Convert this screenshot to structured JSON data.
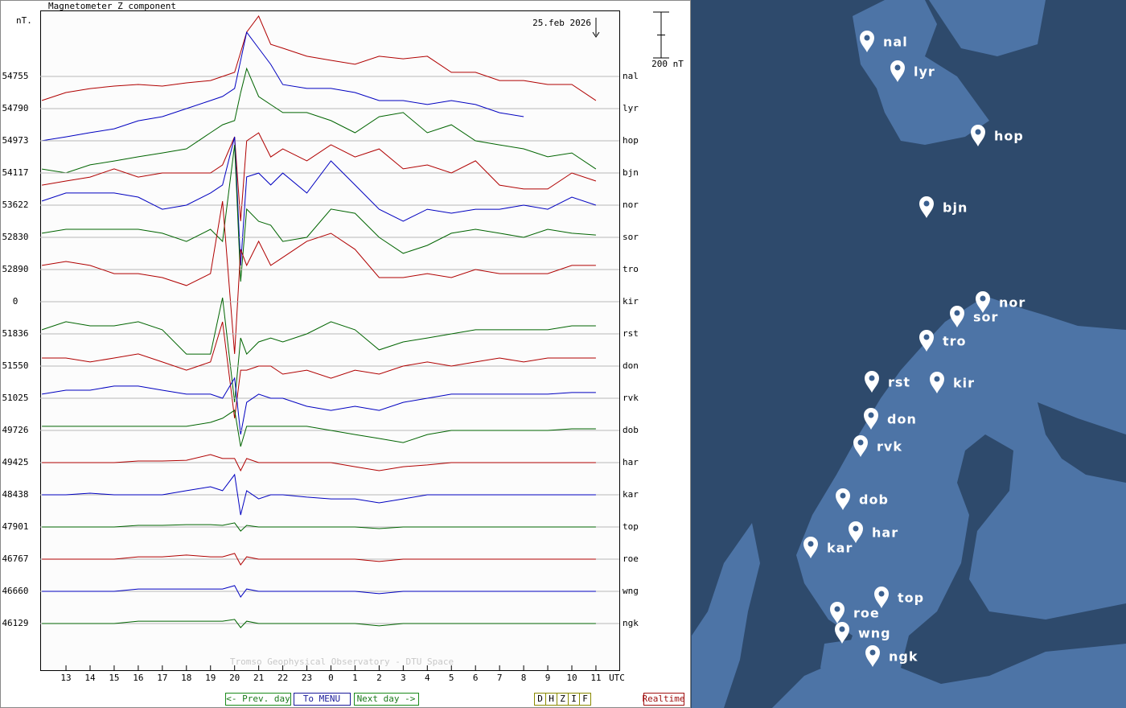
{
  "chart_data": {
    "type": "line",
    "title": "Magnetometer Z component",
    "y_unit": "nT.",
    "x_unit": "UTC",
    "date": "25.feb 2026",
    "scale": {
      "value": 200,
      "label": "200 nT"
    },
    "footer": "Tromso Geophysical Observatory - DTU Space",
    "x": [
      12,
      13,
      14,
      15,
      16,
      17,
      18,
      19,
      19.5,
      20,
      20.25,
      20.5,
      21,
      21.5,
      22,
      23,
      24,
      25,
      26,
      27,
      28,
      29,
      30,
      31,
      32,
      33,
      34,
      35
    ],
    "xlim": [
      11.93,
      35.97
    ],
    "xticks": [
      13,
      14,
      15,
      16,
      17,
      18,
      19,
      20,
      21,
      22,
      23,
      {
        "value": 24,
        "label": "0"
      },
      {
        "value": 25,
        "label": "1"
      },
      {
        "value": 26,
        "label": "2"
      },
      {
        "value": 27,
        "label": "3"
      },
      {
        "value": 28,
        "label": "4"
      },
      {
        "value": 29,
        "label": "5"
      },
      {
        "value": 30,
        "label": "6"
      },
      {
        "value": 31,
        "label": "7"
      },
      {
        "value": 32,
        "label": "8"
      },
      {
        "value": 33,
        "label": "9"
      },
      {
        "value": 34,
        "label": "10"
      },
      {
        "value": 35,
        "label": "11"
      }
    ],
    "series": [
      {
        "name": "nal",
        "color": "#b00000",
        "baseline": 54755,
        "values": [
          -105,
          -70,
          -53,
          -42,
          -35,
          -42,
          -28,
          -18,
          0,
          18,
          105,
          193,
          263,
          140,
          123,
          88,
          70,
          53,
          88,
          77,
          88,
          18,
          18,
          -18,
          -18,
          -35,
          -35,
          -105
        ]
      },
      {
        "name": "lyr",
        "color": "#0000c0",
        "baseline": 54790,
        "values": [
          -140,
          -123,
          -105,
          -88,
          -53,
          -35,
          0,
          35,
          53,
          88,
          210,
          333,
          263,
          193,
          105,
          88,
          88,
          70,
          35,
          35,
          18,
          35,
          18,
          -18,
          -35,
          null,
          null,
          null
        ]
      },
      {
        "name": "hop",
        "color": "#006400",
        "baseline": 54973,
        "values": [
          -123,
          -140,
          -105,
          -88,
          -70,
          -53,
          -35,
          35,
          70,
          88,
          210,
          315,
          193,
          158,
          123,
          123,
          88,
          35,
          105,
          123,
          35,
          70,
          0,
          -18,
          -35,
          -70,
          -53,
          -123
        ]
      },
      {
        "name": "bjn",
        "color": "#b00000",
        "baseline": 54117,
        "values": [
          -53,
          -35,
          -18,
          18,
          -18,
          0,
          0,
          0,
          35,
          158,
          -210,
          140,
          175,
          70,
          105,
          53,
          123,
          70,
          105,
          18,
          35,
          0,
          53,
          -53,
          -70,
          -70,
          0,
          -35
        ]
      },
      {
        "name": "nor",
        "color": "#0000c0",
        "baseline": 53622,
        "values": [
          18,
          53,
          53,
          53,
          35,
          -18,
          0,
          53,
          88,
          298,
          -263,
          123,
          140,
          88,
          140,
          53,
          193,
          88,
          -18,
          -70,
          -18,
          -35,
          -18,
          -18,
          0,
          -18,
          35,
          0
        ]
      },
      {
        "name": "sor",
        "color": "#006400",
        "baseline": 52830,
        "values": [
          18,
          35,
          35,
          35,
          35,
          18,
          -18,
          35,
          -18,
          403,
          -193,
          123,
          70,
          53,
          -18,
          0,
          123,
          105,
          0,
          -70,
          -35,
          18,
          35,
          18,
          0,
          35,
          18,
          10
        ]
      },
      {
        "name": "tro",
        "color": "#b00000",
        "baseline": 52890,
        "values": [
          18,
          35,
          18,
          -18,
          -18,
          -35,
          -70,
          -18,
          298,
          -368,
          88,
          18,
          123,
          18,
          53,
          123,
          158,
          88,
          -35,
          -35,
          -18,
          -35,
          0,
          -18,
          -18,
          -18,
          18,
          18
        ]
      },
      {
        "name": "kir",
        "color": "#0000c0",
        "baseline": 0,
        "values": [
          null,
          null,
          null,
          null,
          null,
          null,
          null,
          null,
          null,
          null,
          null,
          null,
          null,
          null,
          null,
          null,
          null,
          null,
          null,
          null,
          null,
          null,
          null,
          null,
          null,
          null,
          null,
          null
        ]
      },
      {
        "name": "rst",
        "color": "#006400",
        "baseline": 51836,
        "values": [
          18,
          53,
          35,
          35,
          53,
          18,
          -88,
          -88,
          158,
          -298,
          -18,
          -88,
          -35,
          -18,
          -35,
          0,
          53,
          18,
          -70,
          -35,
          -18,
          0,
          18,
          18,
          18,
          18,
          35,
          35
        ]
      },
      {
        "name": "don",
        "color": "#b00000",
        "baseline": 51550,
        "values": [
          35,
          35,
          18,
          35,
          53,
          18,
          -18,
          18,
          193,
          -228,
          -18,
          -18,
          0,
          0,
          -35,
          -18,
          -53,
          -18,
          -35,
          0,
          18,
          0,
          18,
          35,
          18,
          35,
          35,
          35
        ]
      },
      {
        "name": "rvk",
        "color": "#0000c0",
        "baseline": 51025,
        "values": [
          18,
          35,
          35,
          53,
          53,
          35,
          18,
          18,
          0,
          88,
          -158,
          -18,
          18,
          0,
          0,
          -35,
          -53,
          -35,
          -53,
          -18,
          0,
          18,
          18,
          18,
          18,
          18,
          25,
          25
        ]
      },
      {
        "name": "dob",
        "color": "#006400",
        "baseline": 49726,
        "values": [
          18,
          18,
          18,
          18,
          18,
          18,
          18,
          35,
          53,
          88,
          -70,
          18,
          18,
          18,
          18,
          18,
          0,
          -18,
          -35,
          -53,
          -18,
          0,
          0,
          0,
          0,
          0,
          7,
          7
        ]
      },
      {
        "name": "har",
        "color": "#b00000",
        "baseline": 49425,
        "values": [
          0,
          0,
          0,
          0,
          7,
          7,
          10,
          35,
          18,
          18,
          -35,
          18,
          0,
          0,
          0,
          0,
          0,
          -18,
          -35,
          -18,
          -10,
          0,
          0,
          0,
          0,
          0,
          0,
          0
        ]
      },
      {
        "name": "kar",
        "color": "#0000c0",
        "baseline": 48438,
        "values": [
          0,
          0,
          7,
          0,
          0,
          0,
          18,
          35,
          18,
          88,
          -88,
          18,
          -18,
          0,
          0,
          -10,
          -18,
          -18,
          -35,
          -18,
          0,
          0,
          0,
          0,
          0,
          0,
          0,
          0
        ]
      },
      {
        "name": "top",
        "color": "#006400",
        "baseline": 47901,
        "values": [
          0,
          0,
          0,
          0,
          7,
          7,
          10,
          10,
          7,
          18,
          -18,
          7,
          0,
          0,
          0,
          0,
          0,
          0,
          -7,
          0,
          0,
          0,
          0,
          0,
          0,
          0,
          0,
          0
        ]
      },
      {
        "name": "roe",
        "color": "#b00000",
        "baseline": 46767,
        "values": [
          0,
          0,
          0,
          0,
          10,
          10,
          18,
          10,
          10,
          25,
          -25,
          10,
          0,
          0,
          0,
          0,
          0,
          0,
          -10,
          0,
          0,
          0,
          0,
          0,
          0,
          0,
          0,
          0
        ]
      },
      {
        "name": "wng",
        "color": "#0000c0",
        "baseline": 46660,
        "values": [
          0,
          0,
          0,
          0,
          10,
          10,
          10,
          10,
          10,
          25,
          -25,
          10,
          0,
          0,
          0,
          0,
          0,
          0,
          -10,
          0,
          0,
          0,
          0,
          0,
          0,
          0,
          0,
          0
        ]
      },
      {
        "name": "ngk",
        "color": "#006400",
        "baseline": 46129,
        "values": [
          0,
          0,
          0,
          0,
          10,
          10,
          10,
          10,
          10,
          18,
          -18,
          10,
          0,
          0,
          0,
          0,
          0,
          0,
          -10,
          0,
          0,
          0,
          0,
          0,
          0,
          0,
          0,
          0
        ]
      }
    ]
  },
  "ui": {
    "buttons": [
      "<- Prev. day",
      "To MENU",
      "Next day ->"
    ],
    "components": [
      "D",
      "H",
      "Z",
      "I",
      "F"
    ],
    "realtime": "Realtime"
  },
  "map": {
    "markers": [
      "nal",
      "lyr",
      "hop",
      "bjn",
      "nor",
      "sor",
      "tro",
      "rst",
      "kir",
      "don",
      "rvk",
      "dob",
      "har",
      "kar",
      "top",
      "roe",
      "wng",
      "ngk"
    ]
  }
}
